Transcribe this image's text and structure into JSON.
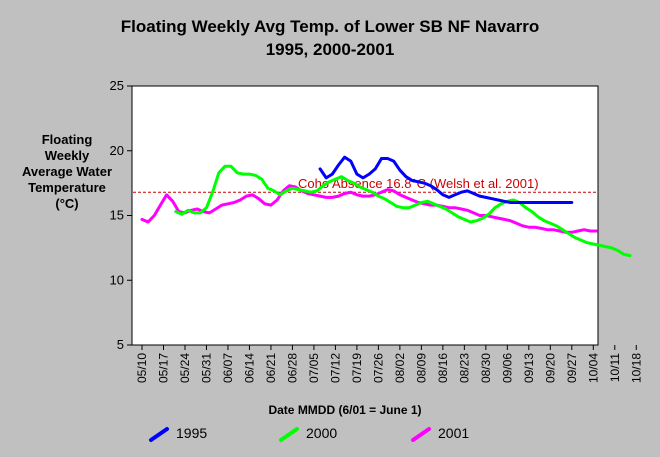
{
  "chart_data": {
    "type": "line",
    "title": "Floating Weekly Avg Temp. of Lower SB NF Navarro",
    "subtitle": "1995, 2000-2001",
    "xlabel": "Date MMDD (6/01 = June 1)",
    "ylabel": "Floating Weekly Average Water Temperature (°C)",
    "ylim": [
      5,
      25
    ],
    "yticks": [
      "5",
      "10",
      "15",
      "20",
      "25"
    ],
    "x_tick_labels": [
      "05/10",
      "05/17",
      "05/24",
      "05/31",
      "06/07",
      "06/14",
      "06/21",
      "06/28",
      "07/05",
      "07/12",
      "07/19",
      "07/26",
      "08/02",
      "08/09",
      "08/16",
      "08/23",
      "08/30",
      "09/06",
      "09/13",
      "09/20",
      "09/27",
      "10/04",
      "10/11",
      "10/18"
    ],
    "grid": false,
    "reference_line": {
      "value": 16.8,
      "label": "Coho Absence 16.8°C (Welsh et al. 2001)",
      "color": "#cc0000"
    },
    "series": [
      {
        "name": "1995",
        "color": "#0000ff",
        "x": [
          58,
          60,
          62,
          64,
          66,
          68,
          70,
          72,
          74,
          76,
          78,
          80,
          82,
          84,
          86,
          88,
          90,
          92,
          94,
          96,
          98,
          100,
          102,
          104,
          106,
          108,
          110,
          112,
          114,
          116,
          118,
          120,
          122,
          124,
          126,
          128,
          130,
          132,
          134,
          136,
          138,
          140
        ],
        "values": [
          18.6,
          17.9,
          18.2,
          18.9,
          19.5,
          19.2,
          18.2,
          17.9,
          18.2,
          18.6,
          19.4,
          19.4,
          19.2,
          18.5,
          18.0,
          17.7,
          17.6,
          17.5,
          17.3,
          17.0,
          16.6,
          16.4,
          16.6,
          16.8,
          16.9,
          16.7,
          16.5,
          16.4,
          16.3,
          16.2,
          16.1,
          16.0,
          16.0,
          16.0,
          16.0,
          16.0,
          16.0,
          16.0,
          16.0,
          16.0,
          16.0,
          16.0
        ]
      },
      {
        "name": "2000",
        "color": "#00ff00",
        "x": [
          11,
          13,
          15,
          17,
          19,
          21,
          23,
          25,
          27,
          29,
          31,
          33,
          35,
          37,
          39,
          41,
          43,
          45,
          47,
          49,
          51,
          53,
          55,
          57,
          59,
          61,
          63,
          65,
          67,
          69,
          71,
          73,
          75,
          77,
          79,
          81,
          83,
          85,
          87,
          89,
          91,
          93,
          95,
          97,
          99,
          101,
          103,
          105,
          107,
          109,
          111,
          113,
          115,
          117,
          119,
          121,
          123,
          125,
          127,
          129,
          131,
          133,
          135,
          137,
          139,
          141,
          143,
          145,
          147,
          149,
          151,
          153,
          155,
          157,
          159
        ],
        "values": [
          15.3,
          15.1,
          15.4,
          15.2,
          15.2,
          15.6,
          16.8,
          18.3,
          18.8,
          18.8,
          18.3,
          18.2,
          18.2,
          18.1,
          17.8,
          17.1,
          16.9,
          16.6,
          16.9,
          17.1,
          17.0,
          16.9,
          16.8,
          16.9,
          17.3,
          17.6,
          17.8,
          18.0,
          17.7,
          17.5,
          17.2,
          17.0,
          16.8,
          16.5,
          16.3,
          16.0,
          15.7,
          15.6,
          15.6,
          15.8,
          16.0,
          16.1,
          15.9,
          15.7,
          15.5,
          15.2,
          14.9,
          14.7,
          14.5,
          14.6,
          14.8,
          15.1,
          15.6,
          15.9,
          16.1,
          16.2,
          16.0,
          15.6,
          15.3,
          14.9,
          14.6,
          14.4,
          14.2,
          13.9,
          13.6,
          13.3,
          13.1,
          12.9,
          12.8,
          12.7,
          12.6,
          12.5,
          12.3,
          12.0,
          11.9
        ]
      },
      {
        "name": "2001",
        "color": "#ff00ff",
        "x": [
          0,
          2,
          4,
          6,
          8,
          10,
          12,
          14,
          16,
          18,
          20,
          22,
          24,
          26,
          28,
          30,
          32,
          34,
          36,
          38,
          40,
          42,
          44,
          46,
          48,
          50,
          52,
          54,
          56,
          58,
          60,
          62,
          64,
          66,
          68,
          70,
          72,
          74,
          76,
          78,
          80,
          82,
          84,
          86,
          88,
          90,
          92,
          94,
          96,
          98,
          100,
          102,
          104,
          106,
          108,
          110,
          112,
          114,
          116,
          118,
          120,
          122,
          124,
          126,
          128,
          130,
          132,
          134,
          136,
          138,
          140,
          142,
          144,
          146,
          148
        ],
        "values": [
          14.7,
          14.5,
          15.0,
          15.8,
          16.6,
          16.1,
          15.3,
          15.2,
          15.4,
          15.5,
          15.3,
          15.2,
          15.5,
          15.8,
          15.9,
          16.0,
          16.2,
          16.5,
          16.6,
          16.3,
          15.9,
          15.8,
          16.2,
          16.9,
          17.3,
          17.2,
          16.9,
          16.7,
          16.6,
          16.5,
          16.4,
          16.4,
          16.5,
          16.7,
          16.8,
          16.6,
          16.5,
          16.5,
          16.6,
          16.8,
          17.0,
          16.9,
          16.6,
          16.4,
          16.2,
          16.0,
          15.9,
          15.8,
          15.8,
          15.7,
          15.6,
          15.6,
          15.5,
          15.4,
          15.2,
          15.0,
          15.0,
          14.9,
          14.8,
          14.7,
          14.6,
          14.4,
          14.2,
          14.1,
          14.1,
          14.0,
          13.9,
          13.9,
          13.8,
          13.7,
          13.7,
          13.8,
          13.9,
          13.8,
          13.8
        ]
      }
    ]
  },
  "legend": [
    {
      "label": "1995",
      "color": "#0000ff"
    },
    {
      "label": "2000",
      "color": "#00ff00"
    },
    {
      "label": "2001",
      "color": "#ff00ff"
    }
  ]
}
